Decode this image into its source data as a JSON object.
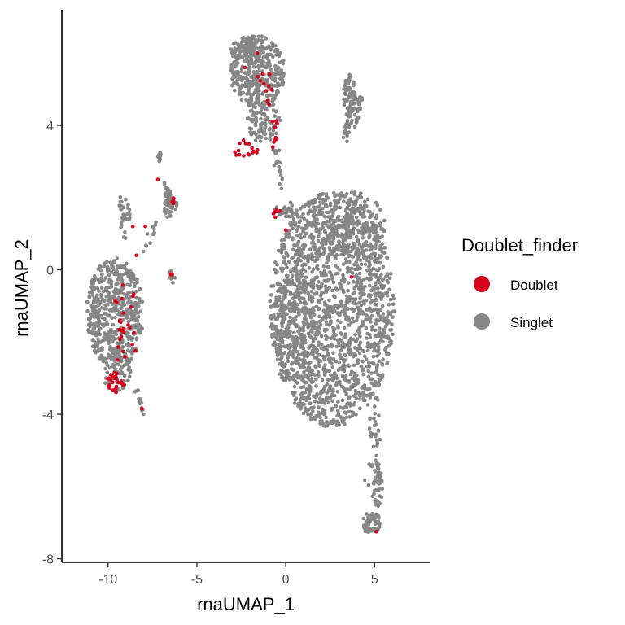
{
  "chart_data": {
    "type": "scatter",
    "title": "",
    "xlabel": "rnaUMAP_1",
    "ylabel": "rnaUMAP_2",
    "xlim": [
      -12.6,
      8.1
    ],
    "ylim": [
      -8.1,
      7.2
    ],
    "x_ticks": [
      -10,
      -5,
      0,
      5
    ],
    "y_ticks": [
      -8,
      -4,
      0,
      4
    ],
    "x_tick_labels": [
      "-10",
      "-5",
      "0",
      "5"
    ],
    "y_tick_labels": [
      "-8",
      "-4",
      "0",
      "4"
    ],
    "grid": false,
    "legend": {
      "title": "Doublet_finder",
      "position": "right",
      "entries": [
        {
          "label": "Doublet",
          "color": "#d7001c"
        },
        {
          "label": "Singlet",
          "color": "#878787"
        }
      ]
    },
    "series": [
      {
        "name": "Singlet",
        "color": "#878787",
        "clusters": [
          {
            "kind": "ellipse",
            "cx": 2.6,
            "cy": -1.1,
            "rx": 3.5,
            "ry": 3.25,
            "n": 1700,
            "seed": 11
          },
          {
            "kind": "ellipse",
            "cx": 0.6,
            "cy": -1.6,
            "rx": 1.3,
            "ry": 1.5,
            "n": 180,
            "seed": 12
          },
          {
            "kind": "ellipse",
            "cx": 3.5,
            "cy": 1.3,
            "rx": 2.2,
            "ry": 0.9,
            "n": 220,
            "seed": 13
          },
          {
            "kind": "ellipse",
            "cx": -9.6,
            "cy": -1.2,
            "rx": 1.6,
            "ry": 1.55,
            "n": 520,
            "seed": 21
          },
          {
            "kind": "ellipse",
            "cx": -9.5,
            "cy": -2.8,
            "rx": 0.8,
            "ry": 0.6,
            "n": 60,
            "seed": 22
          },
          {
            "kind": "ellipse",
            "cx": -1.6,
            "cy": 5.5,
            "rx": 1.55,
            "ry": 1.0,
            "n": 330,
            "seed": 31
          },
          {
            "kind": "ellipse",
            "cx": -1.3,
            "cy": 4.2,
            "rx": 1.0,
            "ry": 0.7,
            "n": 110,
            "seed": 32
          },
          {
            "kind": "ellipse",
            "cx": -2.2,
            "cy": 6.1,
            "rx": 0.9,
            "ry": 0.35,
            "n": 70,
            "seed": 33
          },
          {
            "kind": "ellipse",
            "cx": 3.6,
            "cy": 4.8,
            "rx": 0.35,
            "ry": 0.6,
            "n": 70,
            "seed": 41
          },
          {
            "kind": "ellipse",
            "cx": 4.8,
            "cy": -7.0,
            "rx": 0.55,
            "ry": 0.3,
            "n": 60,
            "seed": 42
          },
          {
            "kind": "ellipse",
            "cx": 5.2,
            "cy": -6.0,
            "rx": 0.25,
            "ry": 0.7,
            "n": 40,
            "seed": 43
          },
          {
            "kind": "ellipse",
            "cx": -6.5,
            "cy": 1.8,
            "rx": 0.4,
            "ry": 0.4,
            "n": 40,
            "seed": 51
          },
          {
            "kind": "ellipse",
            "cx": -9.0,
            "cy": 1.6,
            "rx": 0.3,
            "ry": 0.35,
            "n": 18,
            "seed": 52
          },
          {
            "kind": "ellipse",
            "cx": -7.1,
            "cy": 3.1,
            "rx": 0.12,
            "ry": 0.2,
            "n": 12,
            "seed": 53
          },
          {
            "kind": "ellipse",
            "cx": -6.4,
            "cy": -0.2,
            "rx": 0.2,
            "ry": 0.2,
            "n": 10,
            "seed": 54
          },
          {
            "kind": "ellipse",
            "cx": 0.2,
            "cy": 1.6,
            "rx": 0.5,
            "ry": 0.2,
            "n": 20,
            "seed": 55
          },
          {
            "kind": "line",
            "x1": 3.35,
            "y1": 3.5,
            "x2": 3.85,
            "y2": 5.0,
            "n": 35,
            "jitter": 0.12,
            "seed": 61
          },
          {
            "kind": "line",
            "x1": 4.2,
            "y1": 4.8,
            "x2": 3.9,
            "y2": 4.0,
            "n": 20,
            "jitter": 0.08,
            "seed": 62
          },
          {
            "kind": "line",
            "x1": 5.0,
            "y1": -3.5,
            "x2": 5.0,
            "y2": -6.2,
            "n": 45,
            "jitter": 0.18,
            "seed": 63
          },
          {
            "kind": "line",
            "x1": -8.4,
            "y1": -3.3,
            "x2": -8.0,
            "y2": -3.95,
            "n": 12,
            "jitter": 0.05,
            "seed": 64
          },
          {
            "kind": "line",
            "x1": -7.2,
            "y1": 1.5,
            "x2": -8.0,
            "y2": 0.5,
            "n": 12,
            "jitter": 0.08,
            "seed": 65
          },
          {
            "kind": "line",
            "x1": -0.6,
            "y1": 3.4,
            "x2": -0.3,
            "y2": 2.4,
            "n": 18,
            "jitter": 0.12,
            "seed": 66
          },
          {
            "kind": "line",
            "x1": -9.3,
            "y1": 2.0,
            "x2": -9.2,
            "y2": 0.8,
            "n": 14,
            "jitter": 0.1,
            "seed": 67
          },
          {
            "kind": "line",
            "x1": -6.8,
            "y1": 2.4,
            "x2": -6.3,
            "y2": 1.5,
            "n": 16,
            "jitter": 0.07,
            "seed": 68
          },
          {
            "kind": "line",
            "x1": -0.7,
            "y1": 1.6,
            "x2": 0.5,
            "y2": 1.7,
            "n": 14,
            "jitter": 0.08,
            "seed": 69
          }
        ]
      },
      {
        "name": "Doublet",
        "color": "#d7001c",
        "clusters": [
          {
            "kind": "ellipse",
            "cx": -9.6,
            "cy": -3.1,
            "rx": 0.55,
            "ry": 0.3,
            "n": 26,
            "seed": 71
          },
          {
            "kind": "ellipse",
            "cx": -9.1,
            "cy": -1.5,
            "rx": 0.9,
            "ry": 1.2,
            "n": 26,
            "seed": 72
          },
          {
            "kind": "ellipse",
            "cx": -2.3,
            "cy": 3.35,
            "rx": 0.9,
            "ry": 0.25,
            "n": 16,
            "seed": 73
          },
          {
            "kind": "ellipse",
            "cx": -0.5,
            "cy": 1.55,
            "rx": 0.3,
            "ry": 0.1,
            "n": 6,
            "seed": 74
          },
          {
            "kind": "ellipse",
            "cx": -0.6,
            "cy": 3.8,
            "rx": 0.25,
            "ry": 0.5,
            "n": 10,
            "seed": 75
          },
          {
            "kind": "ellipse",
            "cx": -1.2,
            "cy": 4.9,
            "rx": 0.6,
            "ry": 0.6,
            "n": 10,
            "seed": 76
          },
          {
            "kind": "ellipse",
            "cx": -6.3,
            "cy": 1.9,
            "rx": 0.15,
            "ry": 0.15,
            "n": 5,
            "seed": 77
          },
          {
            "kind": "ellipse",
            "cx": -6.4,
            "cy": -0.2,
            "rx": 0.1,
            "ry": 0.1,
            "n": 3,
            "seed": 78
          }
        ],
        "points": [
          {
            "x": -7.2,
            "y": 2.5
          },
          {
            "x": -7.9,
            "y": 1.2
          },
          {
            "x": -8.6,
            "y": 1.2
          },
          {
            "x": -8.1,
            "y": -3.85
          },
          {
            "x": 3.7,
            "y": -0.2
          },
          {
            "x": 5.1,
            "y": -7.25
          },
          {
            "x": 0.0,
            "y": 1.1
          },
          {
            "x": -1.6,
            "y": 6.0
          },
          {
            "x": -2.3,
            "y": 5.6
          },
          {
            "x": -8.4,
            "y": 0.4
          }
        ]
      }
    ]
  }
}
